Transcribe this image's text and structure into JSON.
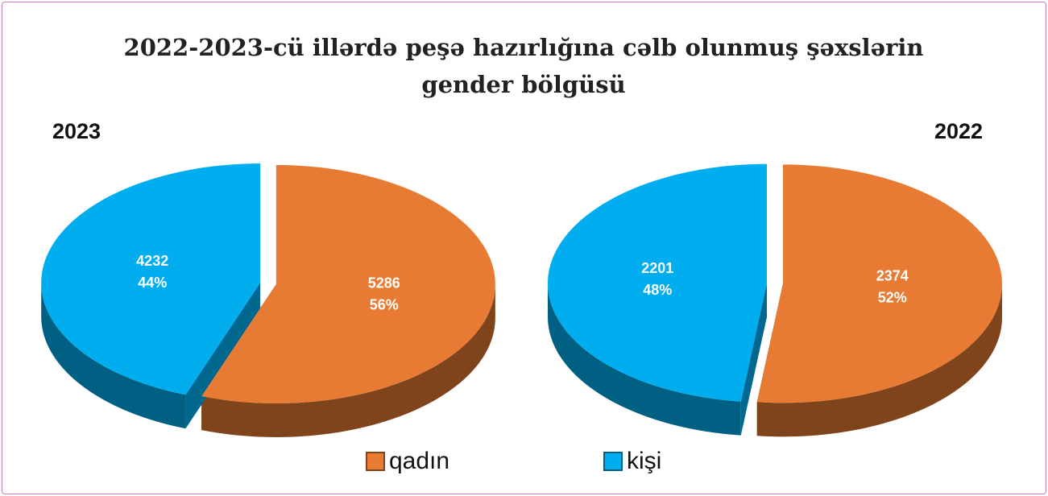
{
  "title": "2022-2023-cü illərdə peşə hazırlığına cəlb olunmuş şəxslərin gender bölgüsü",
  "chart_data": [
    {
      "type": "pie",
      "title": "2023",
      "categories": [
        "qadın",
        "kişi"
      ],
      "values": [
        5286,
        4232
      ],
      "percent_labels": [
        "56%",
        "44%"
      ],
      "colors": [
        "#e87b33",
        "#00aeef"
      ]
    },
    {
      "type": "pie",
      "title": "2022",
      "categories": [
        "qadın",
        "kişi"
      ],
      "values": [
        2374,
        2201
      ],
      "percent_labels": [
        "52%",
        "48%"
      ],
      "colors": [
        "#e87b33",
        "#00aeef"
      ]
    }
  ]
}
